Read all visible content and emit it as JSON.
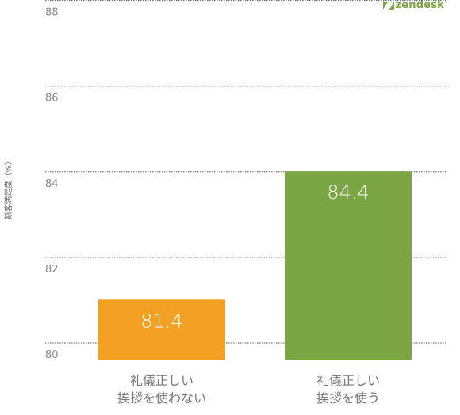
{
  "brand": {
    "logo_text": "zendesk",
    "color": "#7aa644"
  },
  "chart_data": {
    "type": "bar",
    "ylabel": "顧客満足度（%）",
    "ylim": [
      80,
      88.4
    ],
    "yticks": [
      80,
      82,
      84,
      86,
      88
    ],
    "grid": true,
    "categories": [
      [
        "礼儀正しい",
        "挨拶を使わない"
      ],
      [
        "礼儀正しい",
        "挨拶を使う"
      ]
    ],
    "values": [
      81.4,
      84.4
    ],
    "data_labels": [
      "81.4",
      "84.4"
    ],
    "colors": [
      "#f4a023",
      "#7aa644"
    ]
  }
}
